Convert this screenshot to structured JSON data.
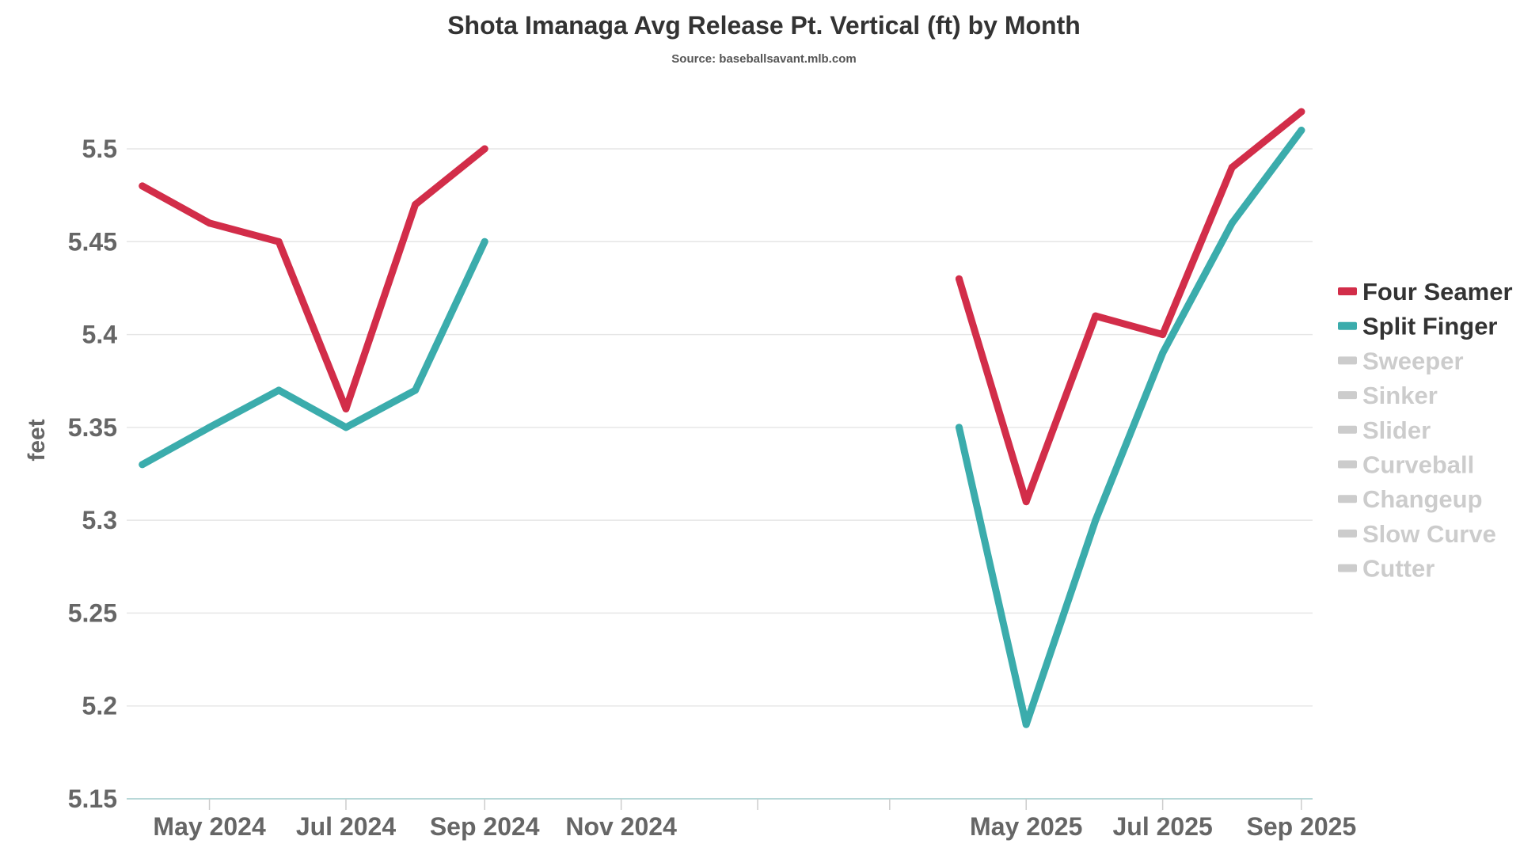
{
  "chart_data": {
    "type": "line",
    "title": "Shota Imanaga Avg Release Pt. Vertical (ft) by Month",
    "subtitle": "Source: baseballsavant.mlb.com",
    "xlabel": "",
    "ylabel": "feet",
    "ylim": [
      5.15,
      5.52
    ],
    "yticks": [
      "5.15",
      "5.2",
      "5.25",
      "5.3",
      "5.35",
      "5.4",
      "5.45",
      "5.5"
    ],
    "xlim": [
      "2024-03-25",
      "2025-09-06"
    ],
    "xticks": [
      {
        "date": "2024-05",
        "label": "May 2024"
      },
      {
        "date": "2024-07",
        "label": "Jul 2024"
      },
      {
        "date": "2024-09",
        "label": "Sep 2024"
      },
      {
        "date": "2024-11",
        "label": "Nov 2024"
      },
      {
        "date": "2025-01",
        "label": ""
      },
      {
        "date": "2025-03",
        "label": ""
      },
      {
        "date": "2025-05",
        "label": "May 2025"
      },
      {
        "date": "2025-07",
        "label": "Jul 2025"
      },
      {
        "date": "2025-09",
        "label": "Sep 2025"
      }
    ],
    "grid": true,
    "legend_position": "right",
    "series": [
      {
        "name": "Four Seamer",
        "color": "#d22d49",
        "active": true,
        "segments": [
          {
            "x": [
              "2024-04",
              "2024-05",
              "2024-06",
              "2024-07",
              "2024-08",
              "2024-09"
            ],
            "y": [
              5.48,
              5.46,
              5.45,
              5.36,
              5.47,
              5.5
            ]
          },
          {
            "x": [
              "2025-04",
              "2025-05",
              "2025-06",
              "2025-07",
              "2025-08",
              "2025-09"
            ],
            "y": [
              5.43,
              5.31,
              5.41,
              5.4,
              5.49,
              5.52
            ]
          }
        ]
      },
      {
        "name": "Split Finger",
        "color": "#3bacac",
        "active": true,
        "segments": [
          {
            "x": [
              "2024-04",
              "2024-05",
              "2024-06",
              "2024-07",
              "2024-08",
              "2024-09"
            ],
            "y": [
              5.33,
              5.35,
              5.37,
              5.35,
              5.37,
              5.45
            ]
          },
          {
            "x": [
              "2025-04",
              "2025-05",
              "2025-06",
              "2025-07",
              "2025-08",
              "2025-09"
            ],
            "y": [
              5.35,
              5.19,
              5.3,
              5.39,
              5.46,
              5.51
            ]
          }
        ]
      },
      {
        "name": "Sweeper",
        "color": "#cccccc",
        "active": false,
        "segments": []
      },
      {
        "name": "Sinker",
        "color": "#cccccc",
        "active": false,
        "segments": []
      },
      {
        "name": "Slider",
        "color": "#cccccc",
        "active": false,
        "segments": []
      },
      {
        "name": "Curveball",
        "color": "#cccccc",
        "active": false,
        "segments": []
      },
      {
        "name": "Changeup",
        "color": "#cccccc",
        "active": false,
        "segments": []
      },
      {
        "name": "Slow Curve",
        "color": "#cccccc",
        "active": false,
        "segments": []
      },
      {
        "name": "Cutter",
        "color": "#cccccc",
        "active": false,
        "segments": []
      }
    ]
  }
}
